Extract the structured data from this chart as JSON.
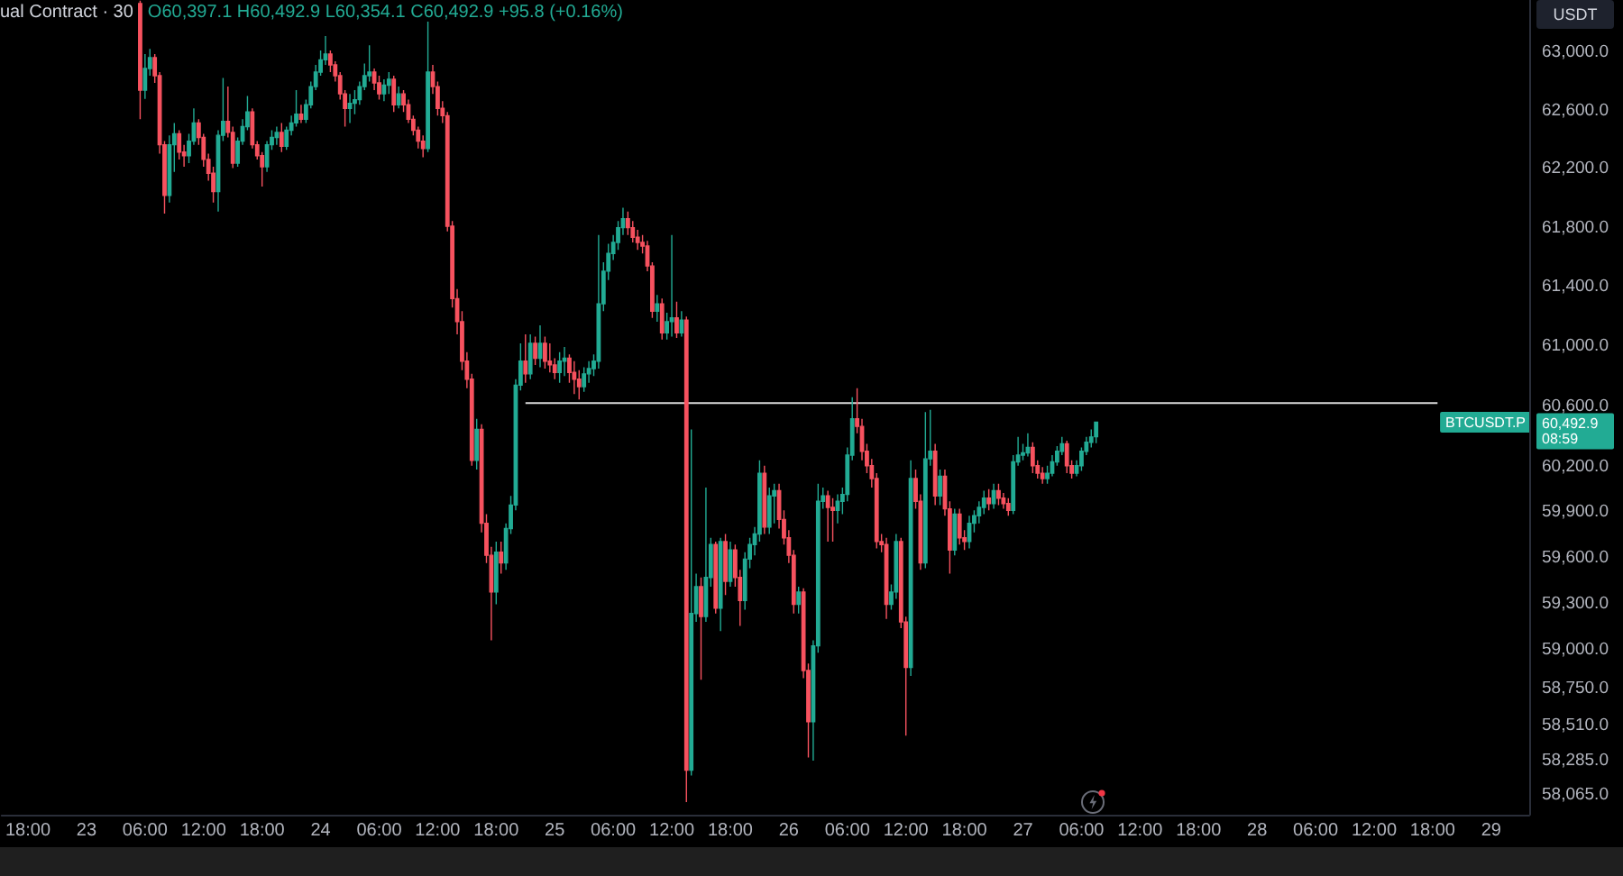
{
  "chart_data": {
    "type": "candlestick",
    "title": "ual Contract · 30",
    "ylabel": "USDT",
    "annotations": [
      "O60,397.1 H60,492.9 L60,354.1 C60,492.9 +95.8 (+0.16%)",
      "BTCUSDT.P",
      "60,492.9\n08:59"
    ],
    "log": true,
    "xlim": [
      "--06-22T15:18",
      "--06-29T03:54"
    ],
    "ylim": [
      57940,
      63365
    ],
    "xticks": [
      {
        "value": "--06-22T18:00",
        "label": "18:00"
      },
      {
        "value": "--06-23",
        "label": "23"
      },
      {
        "value": "--06-23T06:00",
        "label": "06:00"
      },
      {
        "value": "--06-23T12:00",
        "label": "12:00"
      },
      {
        "value": "--06-23T18:00",
        "label": "18:00"
      },
      {
        "value": "--06-24",
        "label": "24"
      },
      {
        "value": "--06-24T06:00",
        "label": "06:00"
      },
      {
        "value": "--06-24T12:00",
        "label": "12:00"
      },
      {
        "value": "--06-24T18:00",
        "label": "18:00"
      },
      {
        "value": "--06-25",
        "label": "25"
      },
      {
        "value": "--06-25T06:00",
        "label": "06:00"
      },
      {
        "value": "--06-25T12:00",
        "label": "12:00"
      },
      {
        "value": "--06-25T18:00",
        "label": "18:00"
      },
      {
        "value": "--06-26",
        "label": "26"
      },
      {
        "value": "--06-26T06:00",
        "label": "06:00"
      },
      {
        "value": "--06-26T12:00",
        "label": "12:00"
      },
      {
        "value": "--06-26T18:00",
        "label": "18:00"
      },
      {
        "value": "--06-27",
        "label": "27"
      },
      {
        "value": "--06-27T06:00",
        "label": "06:00"
      },
      {
        "value": "--06-27T12:00",
        "label": "12:00"
      },
      {
        "value": "--06-27T18:00",
        "label": "18:00"
      },
      {
        "value": "--06-28",
        "label": "28"
      },
      {
        "value": "--06-28T06:00",
        "label": "06:00"
      },
      {
        "value": "--06-28T12:00",
        "label": "12:00"
      },
      {
        "value": "--06-28T18:00",
        "label": "18:00"
      },
      {
        "value": "--06-29",
        "label": "29"
      }
    ],
    "yticks": [
      {
        "value": 63000,
        "label": "63,000.0"
      },
      {
        "value": 62600,
        "label": "62,600.0"
      },
      {
        "value": 62200,
        "label": "62,200.0"
      },
      {
        "value": 61800,
        "label": "61,800.0"
      },
      {
        "value": 61400,
        "label": "61,400.0"
      },
      {
        "value": 61000,
        "label": "61,000.0"
      },
      {
        "value": 60600,
        "label": "60,600.0"
      },
      {
        "value": 60200,
        "label": "60,200.0"
      },
      {
        "value": 59900,
        "label": "59,900.0"
      },
      {
        "value": 59600,
        "label": "59,600.0"
      },
      {
        "value": 59300,
        "label": "59,300.0"
      },
      {
        "value": 59000,
        "label": "59,000.0"
      },
      {
        "value": 58750,
        "label": "58,750.0"
      },
      {
        "value": 58510,
        "label": "58,510.0"
      },
      {
        "value": 58285,
        "label": "58,285.0"
      },
      {
        "value": 58065,
        "label": "58,065.0"
      }
    ],
    "series": [
      {
        "x": [
          "--06-23T05:30",
          "--06-23T06:00",
          "--06-23T06:30",
          "--06-23T07:00",
          "--06-23T07:30",
          "--06-23T08:00",
          "--06-23T08:30",
          "--06-23T09:00",
          "--06-23T09:30",
          "--06-23T10:00",
          "--06-23T10:30",
          "--06-23T11:00",
          "--06-23T11:30",
          "--06-23T12:00",
          "--06-23T12:30",
          "--06-23T13:00",
          "--06-23T13:30",
          "--06-23T14:00",
          "--06-23T14:30",
          "--06-23T15:00",
          "--06-23T15:30",
          "--06-23T16:00",
          "--06-23T16:30",
          "--06-23T17:00",
          "--06-23T17:30",
          "--06-23T18:00",
          "--06-23T18:30",
          "--06-23T19:00",
          "--06-23T19:30",
          "--06-23T20:00",
          "--06-23T20:30",
          "--06-23T21:00",
          "--06-23T21:30",
          "--06-23T22:00",
          "--06-23T22:30",
          "--06-23T23:00",
          "--06-23T23:30",
          "--06-24T00:00",
          "--06-24T00:30",
          "--06-24T01:00",
          "--06-24T01:30",
          "--06-24T02:00",
          "--06-24T02:30",
          "--06-24T03:00",
          "--06-24T03:30",
          "--06-24T04:00",
          "--06-24T04:30",
          "--06-24T05:00",
          "--06-24T05:30",
          "--06-24T06:00",
          "--06-24T06:30",
          "--06-24T07:00",
          "--06-24T07:30",
          "--06-24T08:00",
          "--06-24T08:30",
          "--06-24T09:00",
          "--06-24T09:30",
          "--06-24T10:00",
          "--06-24T10:30",
          "--06-24T11:00",
          "--06-24T11:30",
          "--06-24T12:00",
          "--06-24T12:30",
          "--06-24T13:00",
          "--06-24T13:30",
          "--06-24T14:00",
          "--06-24T14:30",
          "--06-24T15:00",
          "--06-24T15:30",
          "--06-24T16:00",
          "--06-24T16:30",
          "--06-24T17:00",
          "--06-24T17:30",
          "--06-24T18:00",
          "--06-24T18:30",
          "--06-24T19:00",
          "--06-24T19:30",
          "--06-24T20:00",
          "--06-24T20:30",
          "--06-24T21:00",
          "--06-24T21:30",
          "--06-24T22:00",
          "--06-24T22:30",
          "--06-24T23:00",
          "--06-24T23:30",
          "--06-25T00:00",
          "--06-25T00:30",
          "--06-25T01:00",
          "--06-25T01:30",
          "--06-25T02:00",
          "--06-25T02:30",
          "--06-25T03:00",
          "--06-25T03:30",
          "--06-25T04:00",
          "--06-25T04:30",
          "--06-25T05:00",
          "--06-25T05:30",
          "--06-25T06:00",
          "--06-25T06:30",
          "--06-25T07:00",
          "--06-25T07:30",
          "--06-25T08:00",
          "--06-25T08:30",
          "--06-25T09:00",
          "--06-25T09:30",
          "--06-25T10:00",
          "--06-25T10:30",
          "--06-25T11:00",
          "--06-25T11:30",
          "--06-25T12:00",
          "--06-25T12:30",
          "--06-25T13:00",
          "--06-25T13:30",
          "--06-25T14:00",
          "--06-25T14:30",
          "--06-25T15:00",
          "--06-25T15:30",
          "--06-25T16:00",
          "--06-25T16:30",
          "--06-25T17:00",
          "--06-25T17:30",
          "--06-25T18:00",
          "--06-25T18:30",
          "--06-25T19:00",
          "--06-25T19:30",
          "--06-25T20:00",
          "--06-25T20:30",
          "--06-25T21:00",
          "--06-25T21:30",
          "--06-25T22:00",
          "--06-25T22:30",
          "--06-25T23:00",
          "--06-25T23:30",
          "--06-26T00:00",
          "--06-26T00:30",
          "--06-26T01:00",
          "--06-26T01:30",
          "--06-26T02:00",
          "--06-26T02:30",
          "--06-26T03:00",
          "--06-26T03:30",
          "--06-26T04:00",
          "--06-26T04:30",
          "--06-26T05:00",
          "--06-26T05:30",
          "--06-26T06:00",
          "--06-26T06:30",
          "--06-26T07:00",
          "--06-26T07:30",
          "--06-26T08:00",
          "--06-26T08:30",
          "--06-26T09:00",
          "--06-26T09:30",
          "--06-26T10:00",
          "--06-26T10:30",
          "--06-26T11:00",
          "--06-26T11:30",
          "--06-26T12:00",
          "--06-26T12:30",
          "--06-26T13:00",
          "--06-26T13:30",
          "--06-26T14:00",
          "--06-26T14:30",
          "--06-26T15:00",
          "--06-26T15:30",
          "--06-26T16:00",
          "--06-26T16:30",
          "--06-26T17:00",
          "--06-26T17:30",
          "--06-26T18:00",
          "--06-26T18:30",
          "--06-26T19:00",
          "--06-26T19:30",
          "--06-26T20:00",
          "--06-26T20:30",
          "--06-26T21:00",
          "--06-26T21:30",
          "--06-26T22:00",
          "--06-26T22:30",
          "--06-26T23:00",
          "--06-26T23:30",
          "--06-27T00:00",
          "--06-27T00:30",
          "--06-27T01:00",
          "--06-27T01:30",
          "--06-27T02:00",
          "--06-27T02:30",
          "--06-27T03:00",
          "--06-27T03:30",
          "--06-27T04:00",
          "--06-27T04:30",
          "--06-27T05:00",
          "--06-27T05:30",
          "--06-27T06:00",
          "--06-27T06:30",
          "--06-27T07:00",
          "--06-27T07:30"
        ],
        "ohlc": [
          [
            63340,
            63360,
            62540,
            62740
          ],
          [
            62740,
            62990,
            62680,
            62890
          ],
          [
            62890,
            63025,
            62840,
            62965
          ],
          [
            62965,
            62990,
            62790,
            62840
          ],
          [
            62840,
            62865,
            62305,
            62365
          ],
          [
            62365,
            62390,
            61895,
            62020
          ],
          [
            62020,
            62430,
            61970,
            62365
          ],
          [
            62365,
            62515,
            62180,
            62440
          ],
          [
            62440,
            62465,
            62265,
            62315
          ],
          [
            62315,
            62365,
            62215,
            62290
          ],
          [
            62290,
            62440,
            62240,
            62390
          ],
          [
            62390,
            62615,
            62365,
            62515
          ],
          [
            62515,
            62540,
            62365,
            62415
          ],
          [
            62415,
            62440,
            62215,
            62265
          ],
          [
            62265,
            62305,
            62120,
            62170
          ],
          [
            62170,
            62215,
            61970,
            62045
          ],
          [
            62045,
            62465,
            61910,
            62430
          ],
          [
            62430,
            62825,
            62390,
            62525
          ],
          [
            62525,
            62765,
            62415,
            62450
          ],
          [
            62450,
            62490,
            62205,
            62240
          ],
          [
            62240,
            62415,
            62215,
            62390
          ],
          [
            62390,
            62540,
            62365,
            62490
          ],
          [
            62490,
            62700,
            62465,
            62590
          ],
          [
            62590,
            62615,
            62340,
            62365
          ],
          [
            62365,
            62390,
            62265,
            62290
          ],
          [
            62290,
            62315,
            62080,
            62215
          ],
          [
            62215,
            62390,
            62180,
            62365
          ],
          [
            62365,
            62465,
            62330,
            62415
          ],
          [
            62415,
            62490,
            62365,
            62450
          ],
          [
            62450,
            62515,
            62315,
            62355
          ],
          [
            62355,
            62490,
            62330,
            62465
          ],
          [
            62465,
            62565,
            62430,
            62515
          ],
          [
            62515,
            62740,
            62490,
            62575
          ],
          [
            62575,
            62640,
            62515,
            62540
          ],
          [
            62540,
            62675,
            62515,
            62640
          ],
          [
            62640,
            62800,
            62615,
            62765
          ],
          [
            62765,
            62915,
            62740,
            62865
          ],
          [
            62865,
            63015,
            62840,
            62950
          ],
          [
            62950,
            63115,
            62915,
            62990
          ],
          [
            62990,
            63015,
            62865,
            62915
          ],
          [
            62915,
            62940,
            62800,
            62840
          ],
          [
            62840,
            62865,
            62675,
            62715
          ],
          [
            62715,
            62740,
            62490,
            62615
          ],
          [
            62615,
            62715,
            62515,
            62650
          ],
          [
            62650,
            62740,
            62575,
            62675
          ],
          [
            62675,
            62800,
            62640,
            62765
          ],
          [
            62765,
            62925,
            62740,
            62840
          ],
          [
            62840,
            63050,
            62800,
            62865
          ],
          [
            62865,
            62890,
            62740,
            62790
          ],
          [
            62790,
            62840,
            62675,
            62715
          ],
          [
            62715,
            62815,
            62665,
            62775
          ],
          [
            62775,
            62865,
            62715,
            62815
          ],
          [
            62815,
            62840,
            62590,
            62640
          ],
          [
            62640,
            62765,
            62615,
            62715
          ],
          [
            62715,
            62740,
            62590,
            62640
          ],
          [
            62640,
            62675,
            62515,
            62540
          ],
          [
            62540,
            62565,
            62430,
            62465
          ],
          [
            62465,
            62490,
            62340,
            62390
          ],
          [
            62390,
            62430,
            62280,
            62340
          ],
          [
            62340,
            63215,
            62315,
            62865
          ],
          [
            62865,
            62915,
            62715,
            62765
          ],
          [
            62765,
            62800,
            62565,
            62615
          ],
          [
            62615,
            62665,
            62515,
            62565
          ],
          [
            62565,
            62590,
            61775,
            61810
          ],
          [
            61810,
            61845,
            61260,
            61320
          ],
          [
            61320,
            61385,
            61080,
            61165
          ],
          [
            61165,
            61235,
            60840,
            60900
          ],
          [
            60900,
            60960,
            60720,
            60780
          ],
          [
            60780,
            60815,
            60205,
            60240
          ],
          [
            60240,
            60515,
            60180,
            60445
          ],
          [
            60445,
            60480,
            59765,
            59825
          ],
          [
            59825,
            59885,
            59565,
            59615
          ],
          [
            59615,
            59670,
            59060,
            59375
          ],
          [
            59375,
            59705,
            59295,
            59635
          ],
          [
            59635,
            59705,
            59495,
            59565
          ],
          [
            59565,
            59825,
            59520,
            59790
          ],
          [
            59790,
            60005,
            59755,
            59945
          ],
          [
            59945,
            60780,
            59910,
            60740
          ],
          [
            60740,
            61020,
            60705,
            60900
          ],
          [
            60900,
            61080,
            60755,
            60815
          ],
          [
            60815,
            61080,
            60780,
            61020
          ],
          [
            61020,
            61065,
            60875,
            60920
          ],
          [
            60920,
            61140,
            60860,
            61020
          ],
          [
            61020,
            61065,
            60850,
            60900
          ],
          [
            60900,
            61020,
            60825,
            60875
          ],
          [
            60875,
            60920,
            60780,
            60825
          ],
          [
            60825,
            60960,
            60755,
            60900
          ],
          [
            60900,
            60995,
            60800,
            60920
          ],
          [
            60920,
            60945,
            60755,
            60825
          ],
          [
            60825,
            60900,
            60680,
            60780
          ],
          [
            60780,
            60840,
            60645,
            60730
          ],
          [
            60730,
            60860,
            60695,
            60815
          ],
          [
            60815,
            60900,
            60755,
            60850
          ],
          [
            60850,
            60945,
            60800,
            60900
          ],
          [
            60900,
            61750,
            60850,
            61285
          ],
          [
            61285,
            61565,
            61235,
            61505
          ],
          [
            61505,
            61690,
            61445,
            61625
          ],
          [
            61625,
            61750,
            61580,
            61700
          ],
          [
            61700,
            61845,
            61650,
            61800
          ],
          [
            61800,
            61935,
            61750,
            61860
          ],
          [
            61860,
            61910,
            61750,
            61800
          ],
          [
            61800,
            61845,
            61700,
            61735
          ],
          [
            61735,
            61785,
            61650,
            61700
          ],
          [
            61700,
            61750,
            61625,
            61675
          ],
          [
            61675,
            61710,
            61505,
            61540
          ],
          [
            61540,
            61565,
            61190,
            61235
          ],
          [
            61235,
            61345,
            61165,
            61285
          ],
          [
            61285,
            61320,
            61045,
            61090
          ],
          [
            61090,
            61225,
            61045,
            61165
          ],
          [
            61165,
            61750,
            61065,
            61190
          ],
          [
            61190,
            61300,
            61055,
            61090
          ],
          [
            61090,
            61235,
            61065,
            61175
          ],
          [
            61175,
            61200,
            58020,
            58225
          ],
          [
            58225,
            60445,
            58190,
            59235
          ],
          [
            59235,
            59495,
            59180,
            59410
          ],
          [
            59410,
            59470,
            58805,
            59215
          ],
          [
            59215,
            60060,
            59180,
            59470
          ],
          [
            59470,
            59730,
            59410,
            59685
          ],
          [
            59685,
            59705,
            59235,
            59270
          ],
          [
            59270,
            59730,
            59120,
            59705
          ],
          [
            59705,
            59755,
            59355,
            59445
          ],
          [
            59445,
            59705,
            59410,
            59650
          ],
          [
            59650,
            59685,
            59410,
            59470
          ],
          [
            59470,
            59520,
            59155,
            59320
          ],
          [
            59320,
            59635,
            59260,
            59590
          ],
          [
            59590,
            59730,
            59530,
            59685
          ],
          [
            59685,
            59800,
            59615,
            59755
          ],
          [
            59755,
            60240,
            59705,
            60155
          ],
          [
            60155,
            60205,
            59755,
            59800
          ],
          [
            59800,
            60060,
            59755,
            60005
          ],
          [
            60005,
            60085,
            59825,
            60040
          ],
          [
            60040,
            60085,
            59790,
            59850
          ],
          [
            59850,
            59910,
            59685,
            59730
          ],
          [
            59730,
            59780,
            59565,
            59615
          ],
          [
            59615,
            59650,
            59235,
            59295
          ],
          [
            59295,
            59410,
            59235,
            59375
          ],
          [
            59375,
            59400,
            58815,
            58865
          ],
          [
            58865,
            58910,
            58305,
            58535
          ],
          [
            58535,
            59060,
            58285,
            59025
          ],
          [
            59025,
            60085,
            58980,
            59970
          ],
          [
            59970,
            60060,
            59920,
            60005
          ],
          [
            60005,
            60040,
            59705,
            59930
          ],
          [
            59930,
            59990,
            59705,
            59910
          ],
          [
            59910,
            60015,
            59825,
            59970
          ],
          [
            59970,
            60060,
            59885,
            60015
          ],
          [
            60015,
            60325,
            59970,
            60275
          ],
          [
            60275,
            60660,
            60240,
            60515
          ],
          [
            60515,
            60720,
            60420,
            60465
          ],
          [
            60465,
            60515,
            60240,
            60300
          ],
          [
            60300,
            60350,
            60155,
            60205
          ],
          [
            60205,
            60250,
            60060,
            60120
          ],
          [
            60120,
            60155,
            59660,
            59705
          ],
          [
            59705,
            59755,
            59635,
            59685
          ],
          [
            59685,
            59730,
            59200,
            59295
          ],
          [
            59295,
            59425,
            59260,
            59375
          ],
          [
            59375,
            59755,
            59330,
            59705
          ],
          [
            59705,
            59730,
            59140,
            59180
          ],
          [
            59180,
            59215,
            58445,
            58885
          ],
          [
            58885,
            60240,
            58830,
            60120
          ],
          [
            60120,
            60180,
            59920,
            59970
          ],
          [
            59970,
            60015,
            59520,
            59565
          ],
          [
            59565,
            60560,
            59530,
            60250
          ],
          [
            60250,
            60575,
            60205,
            60300
          ],
          [
            60300,
            60350,
            59945,
            60005
          ],
          [
            60005,
            60180,
            59945,
            60135
          ],
          [
            60135,
            60180,
            59875,
            59920
          ],
          [
            59920,
            59970,
            59495,
            59650
          ],
          [
            59650,
            59920,
            59615,
            59885
          ],
          [
            59885,
            59920,
            59685,
            59730
          ],
          [
            59730,
            59780,
            59650,
            59705
          ],
          [
            59705,
            59875,
            59660,
            59825
          ],
          [
            59825,
            59910,
            59765,
            59875
          ],
          [
            59875,
            59970,
            59825,
            59930
          ],
          [
            59930,
            60040,
            59885,
            59990
          ],
          [
            59990,
            60050,
            59910,
            59955
          ],
          [
            59955,
            60085,
            59920,
            60040
          ],
          [
            60040,
            60085,
            59945,
            59990
          ],
          [
            59990,
            60025,
            59920,
            59955
          ],
          [
            59955,
            59990,
            59875,
            59910
          ],
          [
            59910,
            60275,
            59885,
            60230
          ],
          [
            60230,
            60395,
            60205,
            60275
          ],
          [
            60275,
            60350,
            60240,
            60290
          ],
          [
            60290,
            60420,
            60265,
            60325
          ],
          [
            60325,
            60360,
            60155,
            60205
          ],
          [
            60205,
            60240,
            60120,
            60155
          ],
          [
            60155,
            60195,
            60085,
            60120
          ],
          [
            60120,
            60205,
            60085,
            60155
          ],
          [
            60155,
            60275,
            60135,
            60230
          ],
          [
            60230,
            60335,
            60205,
            60300
          ],
          [
            60300,
            60395,
            60275,
            60350
          ],
          [
            60350,
            60370,
            60155,
            60205
          ],
          [
            60205,
            60240,
            60120,
            60155
          ],
          [
            60155,
            60240,
            60135,
            60205
          ],
          [
            60205,
            60325,
            60170,
            60300
          ],
          [
            60300,
            60395,
            60275,
            60360
          ],
          [
            60360,
            60445,
            60325,
            60395
          ],
          [
            60397.1,
            60492.9,
            60354.1,
            60492.9
          ]
        ],
        "colors": [
          "#f7525f",
          "#22ab94",
          "#22ab94",
          "#f7525f",
          "#f7525f",
          "#f7525f",
          "#22ab94",
          "#22ab94",
          "#f7525f",
          "#f7525f",
          "#22ab94",
          "#22ab94",
          "#f7525f",
          "#f7525f",
          "#f7525f",
          "#f7525f",
          "#22ab94",
          "#22ab94",
          "#f7525f",
          "#f7525f",
          "#22ab94",
          "#22ab94",
          "#22ab94",
          "#f7525f",
          "#f7525f",
          "#f7525f",
          "#22ab94",
          "#22ab94",
          "#22ab94",
          "#f7525f",
          "#22ab94",
          "#22ab94",
          "#22ab94",
          "#f7525f",
          "#22ab94",
          "#22ab94",
          "#22ab94",
          "#22ab94",
          "#22ab94",
          "#f7525f",
          "#f7525f",
          "#f7525f",
          "#f7525f",
          "#22ab94",
          "#22ab94",
          "#22ab94",
          "#22ab94",
          "#22ab94",
          "#f7525f",
          "#f7525f",
          "#22ab94",
          "#22ab94",
          "#f7525f",
          "#22ab94",
          "#f7525f",
          "#f7525f",
          "#f7525f",
          "#f7525f",
          "#f7525f",
          "#22ab94",
          "#f7525f",
          "#f7525f",
          "#f7525f",
          "#f7525f",
          "#f7525f",
          "#f7525f",
          "#f7525f",
          "#f7525f",
          "#f7525f",
          "#22ab94",
          "#f7525f",
          "#f7525f",
          "#f7525f",
          "#22ab94",
          "#f7525f",
          "#22ab94",
          "#22ab94",
          "#22ab94",
          "#22ab94",
          "#f7525f",
          "#22ab94",
          "#f7525f",
          "#22ab94",
          "#f7525f",
          "#f7525f",
          "#f7525f",
          "#22ab94",
          "#22ab94",
          "#f7525f",
          "#f7525f",
          "#f7525f",
          "#22ab94",
          "#22ab94",
          "#22ab94",
          "#22ab94",
          "#22ab94",
          "#22ab94",
          "#22ab94",
          "#22ab94",
          "#22ab94",
          "#f7525f",
          "#f7525f",
          "#f7525f",
          "#f7525f",
          "#f7525f",
          "#f7525f",
          "#22ab94",
          "#f7525f",
          "#22ab94",
          "#22ab94",
          "#f7525f",
          "#22ab94",
          "#f7525f",
          "#22ab94",
          "#22ab94",
          "#f7525f",
          "#22ab94",
          "#22ab94",
          "#f7525f",
          "#22ab94",
          "#f7525f",
          "#22ab94",
          "#f7525f",
          "#f7525f",
          "#22ab94",
          "#22ab94",
          "#22ab94",
          "#22ab94",
          "#f7525f",
          "#22ab94",
          "#22ab94",
          "#f7525f",
          "#f7525f",
          "#f7525f",
          "#f7525f",
          "#22ab94",
          "#f7525f",
          "#f7525f",
          "#22ab94",
          "#22ab94",
          "#22ab94",
          "#f7525f",
          "#f7525f",
          "#22ab94",
          "#22ab94",
          "#22ab94",
          "#22ab94",
          "#f7525f",
          "#f7525f",
          "#f7525f",
          "#f7525f",
          "#f7525f",
          "#f7525f",
          "#f7525f",
          "#22ab94",
          "#22ab94",
          "#f7525f",
          "#f7525f",
          "#22ab94",
          "#f7525f",
          "#f7525f",
          "#22ab94",
          "#22ab94",
          "#f7525f",
          "#22ab94",
          "#f7525f",
          "#f7525f",
          "#22ab94",
          "#f7525f",
          "#f7525f",
          "#22ab94",
          "#22ab94",
          "#22ab94",
          "#22ab94",
          "#f7525f",
          "#22ab94",
          "#f7525f",
          "#f7525f",
          "#f7525f",
          "#22ab94",
          "#22ab94",
          "#22ab94",
          "#22ab94",
          "#f7525f",
          "#f7525f",
          "#f7525f",
          "#22ab94",
          "#22ab94",
          "#22ab94",
          "#22ab94",
          "#f7525f",
          "#f7525f",
          "#22ab94",
          "#22ab94",
          "#22ab94",
          "#22ab94",
          "#22ab94"
        ]
      },
      {
        "type": "line",
        "x": [
          "--06-24T21:00",
          "--06-28T18:30"
        ],
        "values": [
          60620,
          60620
        ],
        "color": "#d9d9d9"
      }
    ]
  }
}
